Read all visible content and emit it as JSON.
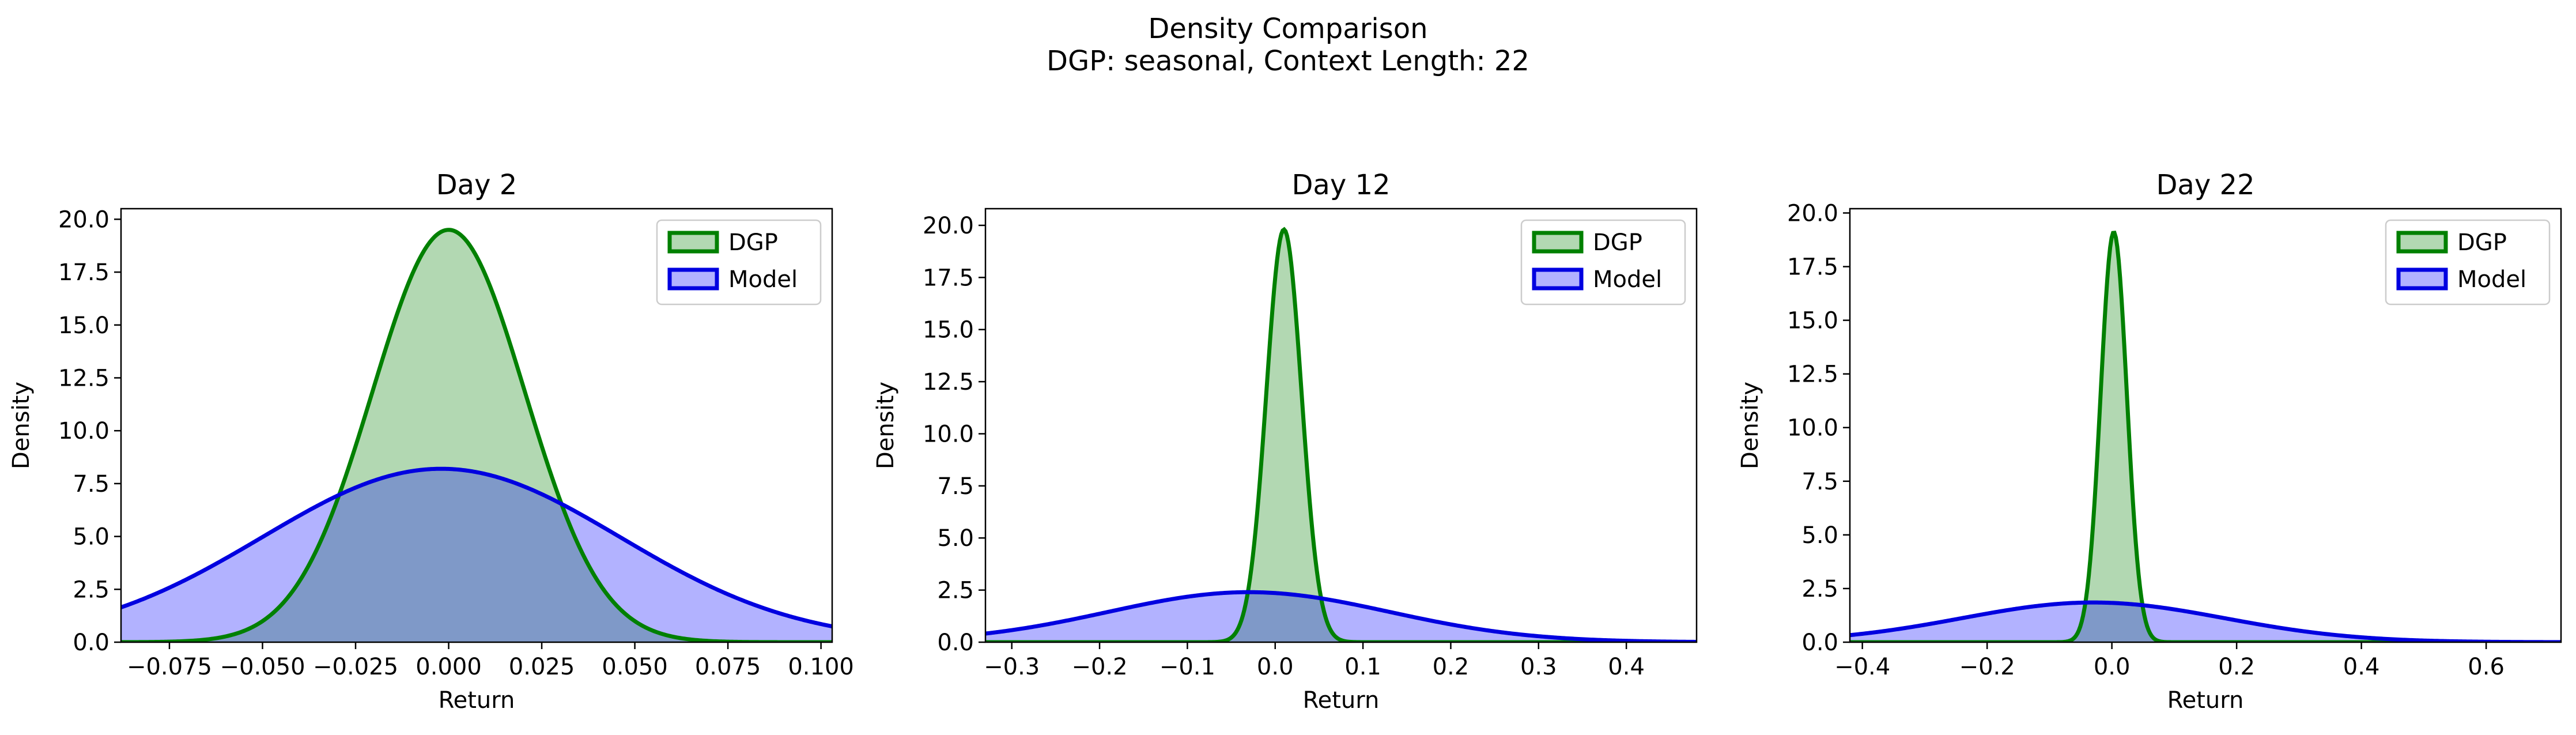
{
  "figure": {
    "title": "Density Comparison",
    "subtitle": "DGP: seasonal, Context Length: 22"
  },
  "colors": {
    "dgp_line": "#008000",
    "dgp_fill": "#b2d8b2",
    "model_line": "#0000e0",
    "model_fill": "#b2b2ff",
    "overlap_fill": "#7f99c8"
  },
  "chart_data": [
    {
      "type": "area",
      "title": "Day 2",
      "xlabel": "Return",
      "ylabel": "Density",
      "xlim": [
        -0.088,
        0.103
      ],
      "ylim": [
        0,
        20.5
      ],
      "xticks": [
        -0.075,
        -0.05,
        -0.025,
        0.0,
        0.025,
        0.05,
        0.075,
        0.1
      ],
      "xtick_labels": [
        "−0.075",
        "−0.050",
        "−0.025",
        "0.000",
        "0.025",
        "0.050",
        "0.075",
        "0.100"
      ],
      "yticks": [
        0,
        2.5,
        5,
        7.5,
        10,
        12.5,
        15,
        17.5,
        20
      ],
      "ytick_labels": [
        "0.0",
        "2.5",
        "5.0",
        "7.5",
        "10.0",
        "12.5",
        "15.0",
        "17.5",
        "20.0"
      ],
      "legend": "top-right",
      "series": [
        {
          "name": "DGP",
          "distribution": "normal",
          "mean": 0.0,
          "std": 0.0205,
          "peak": 19.5
        },
        {
          "name": "Model",
          "distribution": "normal",
          "mean": -0.002,
          "std": 0.048,
          "peak": 8.2
        }
      ]
    },
    {
      "type": "area",
      "title": "Day 12",
      "xlabel": "Return",
      "ylabel": "Density",
      "xlim": [
        -0.33,
        0.48
      ],
      "ylim": [
        0,
        20.8
      ],
      "xticks": [
        -0.3,
        -0.2,
        -0.1,
        0.0,
        0.1,
        0.2,
        0.3,
        0.4
      ],
      "xtick_labels": [
        "−0.3",
        "−0.2",
        "−0.1",
        "0.0",
        "0.1",
        "0.2",
        "0.3",
        "0.4"
      ],
      "yticks": [
        0,
        2.5,
        5,
        7.5,
        10,
        12.5,
        15,
        17.5,
        20
      ],
      "ytick_labels": [
        "0.0",
        "2.5",
        "5.0",
        "7.5",
        "10.0",
        "12.5",
        "15.0",
        "17.5",
        "20.0"
      ],
      "legend": "top-right",
      "series": [
        {
          "name": "DGP",
          "distribution": "normal",
          "mean": 0.01,
          "std": 0.02,
          "peak": 19.8
        },
        {
          "name": "Model",
          "distribution": "normal",
          "mean": -0.03,
          "std": 0.16,
          "peak": 2.4
        }
      ]
    },
    {
      "type": "area",
      "title": "Day 22",
      "xlabel": "Return",
      "ylabel": "Density",
      "xlim": [
        -0.42,
        0.72
      ],
      "ylim": [
        0,
        20.2
      ],
      "xticks": [
        -0.4,
        -0.2,
        0.0,
        0.2,
        0.4,
        0.6
      ],
      "xtick_labels": [
        "−0.4",
        "−0.2",
        "0.0",
        "0.2",
        "0.4",
        "0.6"
      ],
      "yticks": [
        0,
        2.5,
        5,
        7.5,
        10,
        12.5,
        15,
        17.5,
        20
      ],
      "ytick_labels": [
        "0.0",
        "2.5",
        "5.0",
        "7.5",
        "10.0",
        "12.5",
        "15.0",
        "17.5",
        "20.0"
      ],
      "legend": "top-right",
      "series": [
        {
          "name": "DGP",
          "distribution": "normal",
          "mean": 0.003,
          "std": 0.021,
          "peak": 19.1
        },
        {
          "name": "Model",
          "distribution": "normal",
          "mean": -0.03,
          "std": 0.21,
          "peak": 1.85
        }
      ]
    }
  ]
}
